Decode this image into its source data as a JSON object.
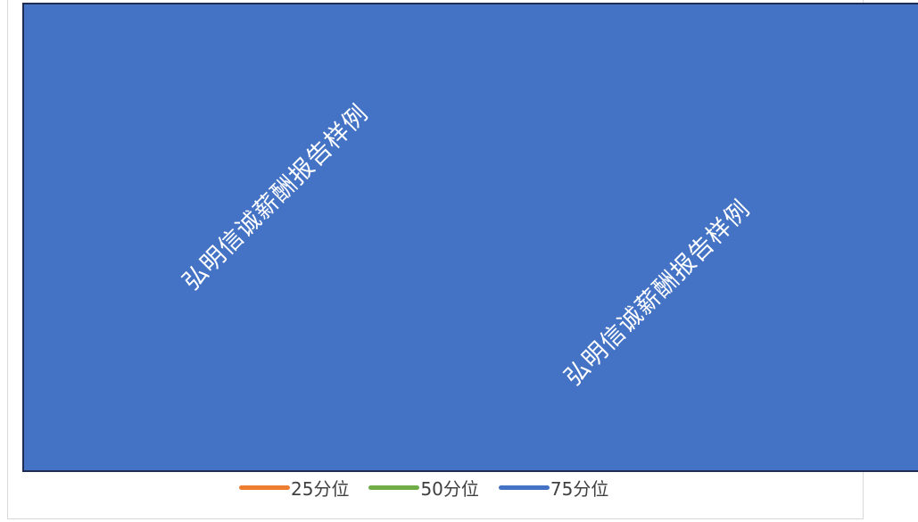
{
  "chart_data": {
    "type": "area",
    "title": "",
    "xlabel": "",
    "ylabel": "",
    "grid": false,
    "legend_placement": "bottom",
    "series": [
      {
        "name": "25分位",
        "color": "#ed7d31"
      },
      {
        "name": "50分位",
        "color": "#70ad47"
      },
      {
        "name": "75分位",
        "color": "#4472c4"
      }
    ],
    "annotations": [
      "弘明信诚薪酬报告样例",
      "弘明信诚薪酬报告样例"
    ]
  }
}
